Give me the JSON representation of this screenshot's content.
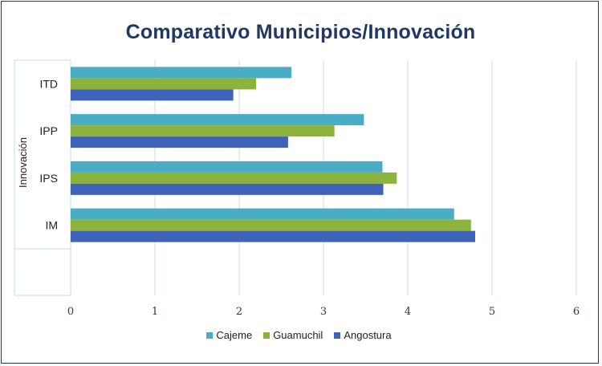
{
  "chart_data": {
    "type": "bar",
    "orientation": "horizontal",
    "title": "Comparativo Municipios/Innovación",
    "ylabel": "Innovación",
    "xlabel": "",
    "categories": [
      "ITD",
      "IPP",
      "IPS",
      "IM"
    ],
    "series": [
      {
        "name": "Cajeme",
        "color": "#4bacc6",
        "values": [
          2.62,
          3.48,
          3.7,
          4.55
        ]
      },
      {
        "name": "Guamuchil",
        "color": "#8cb43c",
        "values": [
          2.2,
          3.13,
          3.87,
          4.75
        ]
      },
      {
        "name": "Angostura",
        "color": "#3f63b8",
        "values": [
          1.93,
          2.58,
          3.71,
          4.8
        ]
      }
    ],
    "xlim": [
      0,
      6
    ],
    "xticks": [
      "0",
      "1",
      "2",
      "3",
      "4",
      "5",
      "6"
    ],
    "grid": true,
    "legend_position": "bottom"
  }
}
